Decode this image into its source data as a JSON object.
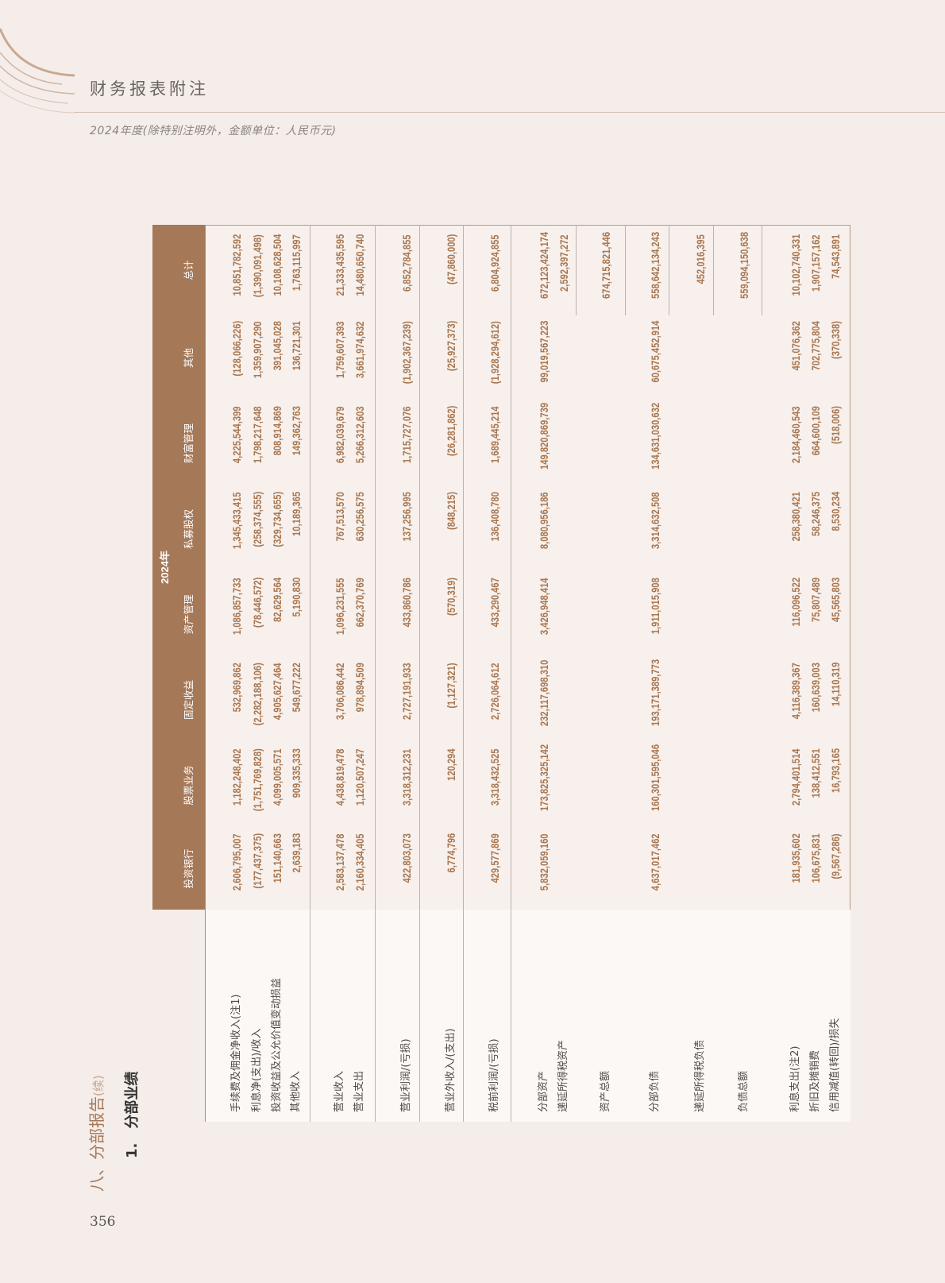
{
  "header": {
    "title": "财务报表附注",
    "subtitle": "2024年度(除特别注明外，金额单位：人民币元)"
  },
  "section": {
    "heading": "八、分部报告",
    "heading_suffix": "(续)",
    "sub_number": "1.",
    "sub_title": "分部业绩"
  },
  "page_number": "356",
  "colors": {
    "accent": "#a57858",
    "numbers": "#a87650",
    "page_bg": "#f5ede9"
  },
  "table": {
    "year": "2024年",
    "columns": [
      "投资银行",
      "股票业务",
      "固定收益",
      "资产管理",
      "私募股权",
      "财富管理",
      "其他",
      "总计"
    ],
    "rows": [
      {
        "label": "手续费及佣金净收入(注1)",
        "values": [
          "2,606,795,007",
          "1,182,248,402",
          "532,969,862",
          "1,086,857,733",
          "1,345,433,415",
          "4,225,544,399",
          "(128,066,226)",
          "10,851,782,592"
        ]
      },
      {
        "label": "利息净(支出)/收入",
        "values": [
          "(177,437,375)",
          "(1,751,769,828)",
          "(2,282,188,106)",
          "(78,446,572)",
          "(258,374,555)",
          "1,798,217,648",
          "1,359,907,290",
          "(1,390,091,498)"
        ]
      },
      {
        "label": "投资收益及公允价值变动损益",
        "values": [
          "151,140,663",
          "4,099,005,571",
          "4,905,627,464",
          "82,629,564",
          "(329,734,655)",
          "808,914,869",
          "391,045,028",
          "10,108,628,504"
        ]
      },
      {
        "label": "其他收入",
        "values": [
          "2,639,183",
          "909,335,333",
          "549,677,222",
          "5,190,830",
          "10,189,365",
          "149,362,763",
          "136,721,301",
          "1,763,115,997"
        ]
      },
      {
        "label": "营业收入",
        "values": [
          "2,583,137,478",
          "4,438,819,478",
          "3,706,086,442",
          "1,096,231,555",
          "767,513,570",
          "6,982,039,679",
          "1,759,607,393",
          "21,333,435,595"
        ]
      },
      {
        "label": "营业支出",
        "values": [
          "2,160,334,405",
          "1,120,507,247",
          "978,894,509",
          "662,370,769",
          "630,256,575",
          "5,266,312,603",
          "3,661,974,632",
          "14,480,650,740"
        ]
      },
      {
        "label": "营业利润/(亏损)",
        "values": [
          "422,803,073",
          "3,318,312,231",
          "2,727,191,933",
          "433,860,786",
          "137,256,995",
          "1,715,727,076",
          "(1,902,367,239)",
          "6,852,784,855"
        ]
      },
      {
        "label": "营业外收入/(支出)",
        "values": [
          "6,774,796",
          "120,294",
          "(1,127,321)",
          "(570,319)",
          "(848,215)",
          "(26,281,862)",
          "(25,927,373)",
          "(47,860,000)"
        ]
      },
      {
        "label": "税前利润/(亏损)",
        "values": [
          "429,577,869",
          "3,318,432,525",
          "2,726,064,612",
          "433,290,467",
          "136,408,780",
          "1,689,445,214",
          "(1,928,294,612)",
          "6,804,924,855"
        ]
      },
      {
        "label": "分部资产",
        "values": [
          "5,832,059,160",
          "173,825,325,142",
          "232,117,698,310",
          "3,426,948,414",
          "8,080,956,186",
          "149,820,869,739",
          "99,019,567,223",
          "672,123,424,174"
        ]
      },
      {
        "label": "递延所得税资产",
        "values": [
          "",
          "",
          "",
          "",
          "",
          "",
          "",
          "2,592,397,272"
        ]
      },
      {
        "label": "资产总额",
        "values": [
          "",
          "",
          "",
          "",
          "",
          "",
          "",
          "674,715,821,446"
        ]
      },
      {
        "label": "分部负债",
        "values": [
          "4,637,017,462",
          "160,301,595,046",
          "193,171,389,773",
          "1,911,015,908",
          "3,314,632,508",
          "134,631,030,632",
          "60,675,452,914",
          "558,642,134,243"
        ]
      },
      {
        "label": "递延所得税负债",
        "values": [
          "",
          "",
          "",
          "",
          "",
          "",
          "",
          "452,016,395"
        ]
      },
      {
        "label": "负债总额",
        "values": [
          "",
          "",
          "",
          "",
          "",
          "",
          "",
          "559,094,150,638"
        ]
      },
      {
        "label": "利息支出(注2)",
        "values": [
          "181,935,602",
          "2,794,401,514",
          "4,116,389,367",
          "116,096,522",
          "258,380,421",
          "2,184,460,543",
          "451,076,362",
          "10,102,740,331"
        ]
      },
      {
        "label": "折旧及摊销费",
        "values": [
          "106,675,831",
          "138,412,551",
          "160,639,003",
          "75,807,489",
          "58,246,375",
          "664,600,109",
          "702,775,804",
          "1,907,157,162"
        ]
      },
      {
        "label": "信用减值(转回)/损失",
        "values": [
          "(9,567,286)",
          "16,793,165",
          "14,110,319",
          "45,565,803",
          "8,530,234",
          "(518,006)",
          "(370,338)",
          "74,543,891"
        ]
      }
    ]
  }
}
